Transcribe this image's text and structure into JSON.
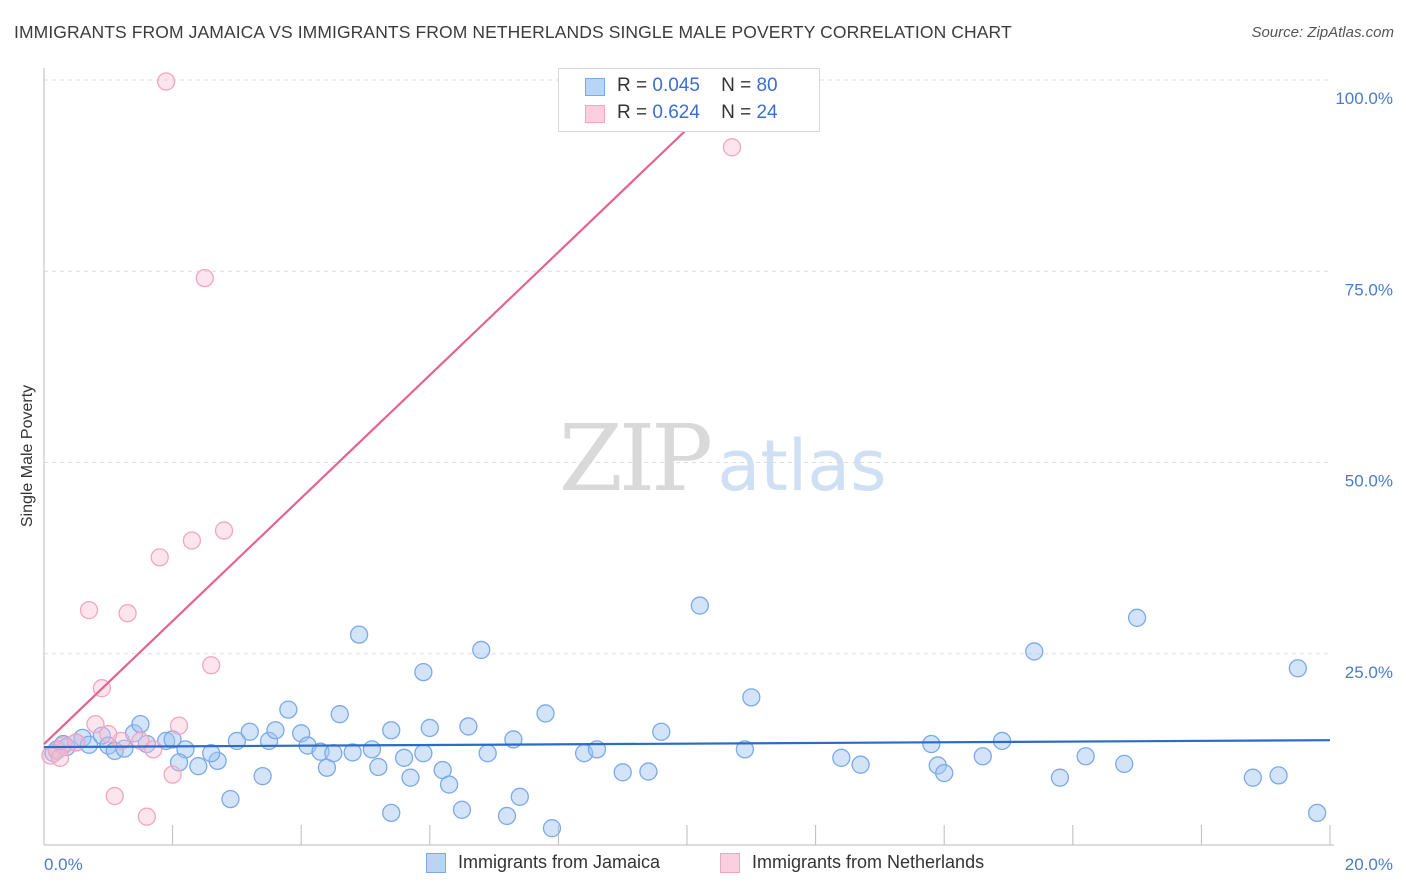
{
  "header": {
    "title": "IMMIGRANTS FROM JAMAICA VS IMMIGRANTS FROM NETHERLANDS SINGLE MALE POVERTY CORRELATION CHART",
    "source": "Source: ZipAtlas.com"
  },
  "watermark": {
    "zip": "ZIP",
    "atlas": "atlas"
  },
  "legend": {
    "r_label": "R =",
    "n_label": "N =",
    "series": [
      {
        "r": "0.045",
        "n": "80"
      },
      {
        "r": "0.624",
        "n": "24"
      }
    ]
  },
  "bottom_legend": {
    "items": [
      "Immigrants from Jamaica",
      "Immigrants from Netherlands"
    ]
  },
  "chart_data": {
    "type": "scatter",
    "title": "IMMIGRANTS FROM JAMAICA VS IMMIGRANTS FROM NETHERLANDS SINGLE MALE POVERTY CORRELATION CHART",
    "ylabel": "Single Male Poverty",
    "xlabel": "",
    "xlim": [
      0,
      20
    ],
    "ylim": [
      0,
      102
    ],
    "x_ticks": [
      {
        "v": 0,
        "label": "0.0%"
      },
      {
        "v": 20,
        "label": "20.0%"
      }
    ],
    "y_ticks": [
      {
        "v": 25,
        "label": "25.0%"
      },
      {
        "v": 50,
        "label": "50.0%"
      },
      {
        "v": 75,
        "label": "75.0%"
      },
      {
        "v": 100,
        "label": "100.0%"
      }
    ],
    "x_gridlines": [
      2,
      4,
      6,
      8,
      10,
      12,
      14,
      16,
      18,
      20
    ],
    "colors": {
      "jamaica": "#7aaae8",
      "jamaica_line": "#2a6cc6",
      "netherlands": "#f2a6bf",
      "netherlands_line": "#e5648e"
    },
    "series": [
      {
        "name": "Immigrants from Jamaica",
        "color": "#7aaae8",
        "trend": {
          "x": [
            0,
            20
          ],
          "y": [
            12.8,
            13.7
          ]
        },
        "points": [
          [
            0.2,
            12.5
          ],
          [
            0.3,
            13.2
          ],
          [
            0.5,
            13.4
          ],
          [
            0.6,
            14.0
          ],
          [
            0.7,
            13.1
          ],
          [
            0.9,
            14.3
          ],
          [
            1.0,
            13.0
          ],
          [
            1.1,
            12.3
          ],
          [
            1.4,
            14.6
          ],
          [
            1.5,
            15.8
          ],
          [
            1.9,
            13.6
          ],
          [
            2.0,
            13.8
          ],
          [
            2.2,
            12.5
          ],
          [
            1.6,
            13.2
          ],
          [
            2.1,
            10.8
          ],
          [
            2.4,
            10.3
          ],
          [
            2.7,
            11.0
          ],
          [
            2.9,
            6.0
          ],
          [
            3.0,
            13.6
          ],
          [
            3.2,
            14.8
          ],
          [
            3.4,
            9.0
          ],
          [
            3.5,
            13.6
          ],
          [
            3.6,
            15.0
          ],
          [
            3.8,
            17.7
          ],
          [
            4.0,
            14.6
          ],
          [
            4.1,
            13.0
          ],
          [
            4.3,
            12.2
          ],
          [
            4.4,
            10.1
          ],
          [
            4.5,
            12.0
          ],
          [
            4.6,
            17.1
          ],
          [
            4.8,
            12.1
          ],
          [
            4.9,
            27.5
          ],
          [
            5.1,
            12.5
          ],
          [
            5.2,
            10.2
          ],
          [
            5.4,
            4.2
          ],
          [
            5.4,
            15.0
          ],
          [
            5.6,
            11.4
          ],
          [
            5.7,
            8.8
          ],
          [
            5.9,
            12.0
          ],
          [
            5.9,
            22.6
          ],
          [
            6.0,
            15.3
          ],
          [
            6.2,
            9.8
          ],
          [
            6.3,
            7.9
          ],
          [
            6.5,
            4.6
          ],
          [
            6.6,
            15.5
          ],
          [
            6.8,
            25.5
          ],
          [
            6.9,
            12.0
          ],
          [
            7.2,
            3.8
          ],
          [
            7.3,
            13.8
          ],
          [
            7.4,
            6.3
          ],
          [
            7.8,
            17.2
          ],
          [
            7.9,
            2.2
          ],
          [
            8.4,
            12.0
          ],
          [
            8.6,
            12.5
          ],
          [
            9.0,
            9.5
          ],
          [
            9.4,
            9.6
          ],
          [
            9.6,
            14.8
          ],
          [
            10.2,
            31.3
          ],
          [
            10.9,
            12.5
          ],
          [
            11.0,
            19.3
          ],
          [
            12.4,
            11.4
          ],
          [
            12.7,
            10.5
          ],
          [
            13.8,
            13.2
          ],
          [
            13.9,
            10.4
          ],
          [
            14.0,
            9.4
          ],
          [
            14.6,
            11.6
          ],
          [
            14.9,
            13.6
          ],
          [
            15.4,
            25.3
          ],
          [
            15.8,
            8.8
          ],
          [
            16.2,
            11.6
          ],
          [
            16.8,
            10.6
          ],
          [
            17.0,
            29.7
          ],
          [
            18.8,
            8.8
          ],
          [
            19.2,
            9.1
          ],
          [
            19.5,
            23.1
          ],
          [
            19.8,
            4.2
          ],
          [
            0.15,
            12.0
          ],
          [
            0.35,
            12.8
          ],
          [
            1.25,
            12.6
          ],
          [
            2.6,
            12.0
          ]
        ]
      },
      {
        "name": "Immigrants from Netherlands",
        "color": "#f2a6bf",
        "trend": {
          "x": [
            0,
            10.8
          ],
          "y": [
            13.2,
            100
          ]
        },
        "points": [
          [
            0.1,
            11.7
          ],
          [
            0.2,
            12.3
          ],
          [
            0.3,
            13.0
          ],
          [
            0.5,
            13.4
          ],
          [
            0.7,
            30.7
          ],
          [
            0.8,
            15.8
          ],
          [
            0.9,
            20.5
          ],
          [
            1.1,
            6.4
          ],
          [
            1.2,
            13.6
          ],
          [
            1.3,
            30.3
          ],
          [
            1.5,
            13.6
          ],
          [
            1.6,
            3.7
          ],
          [
            1.7,
            12.5
          ],
          [
            1.8,
            37.6
          ],
          [
            1.9,
            99.8
          ],
          [
            2.0,
            9.2
          ],
          [
            2.1,
            15.6
          ],
          [
            2.3,
            39.8
          ],
          [
            2.5,
            74.1
          ],
          [
            2.6,
            23.5
          ],
          [
            2.8,
            41.1
          ],
          [
            10.7,
            91.2
          ],
          [
            1.0,
            14.5
          ],
          [
            0.25,
            11.4
          ]
        ]
      }
    ]
  }
}
